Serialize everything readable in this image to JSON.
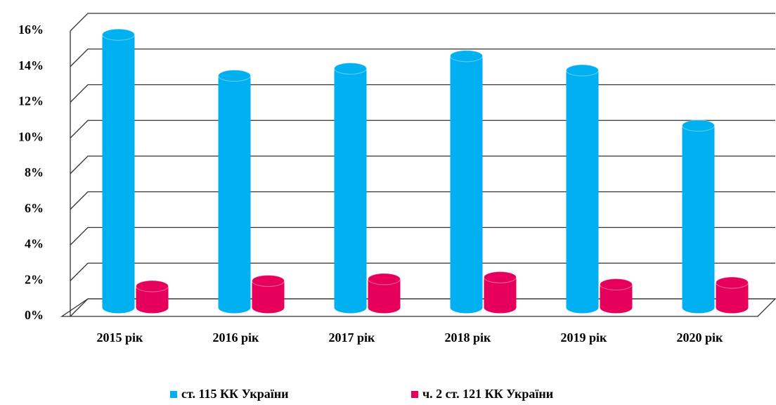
{
  "chart_data": {
    "type": "bar3d",
    "categories": [
      "2015 рік",
      "2016 рік",
      "2017 рік",
      "2018 рік",
      "2019 рік",
      "2020 рік"
    ],
    "series": [
      {
        "name": "ст. 115 КК України",
        "color": "#00b0f0",
        "values": [
          15.3,
          13.0,
          13.4,
          14.1,
          13.3,
          10.2
        ]
      },
      {
        "name": "ч. 2 ст. 121 КК України",
        "color": "#e6005c",
        "values": [
          1.2,
          1.5,
          1.6,
          1.7,
          1.3,
          1.4
        ]
      }
    ],
    "ylim": [
      0,
      16
    ],
    "yticks": [
      {
        "value": 0,
        "label": "0%"
      },
      {
        "value": 2,
        "label": "2%"
      },
      {
        "value": 4,
        "label": "4%"
      },
      {
        "value": 6,
        "label": "6%"
      },
      {
        "value": 8,
        "label": "8%"
      },
      {
        "value": 10,
        "label": "10%"
      },
      {
        "value": 12,
        "label": "12%"
      },
      {
        "value": 14,
        "label": "14%"
      },
      {
        "value": 16,
        "label": "16%"
      }
    ],
    "grid": true,
    "legend": "bottom"
  }
}
